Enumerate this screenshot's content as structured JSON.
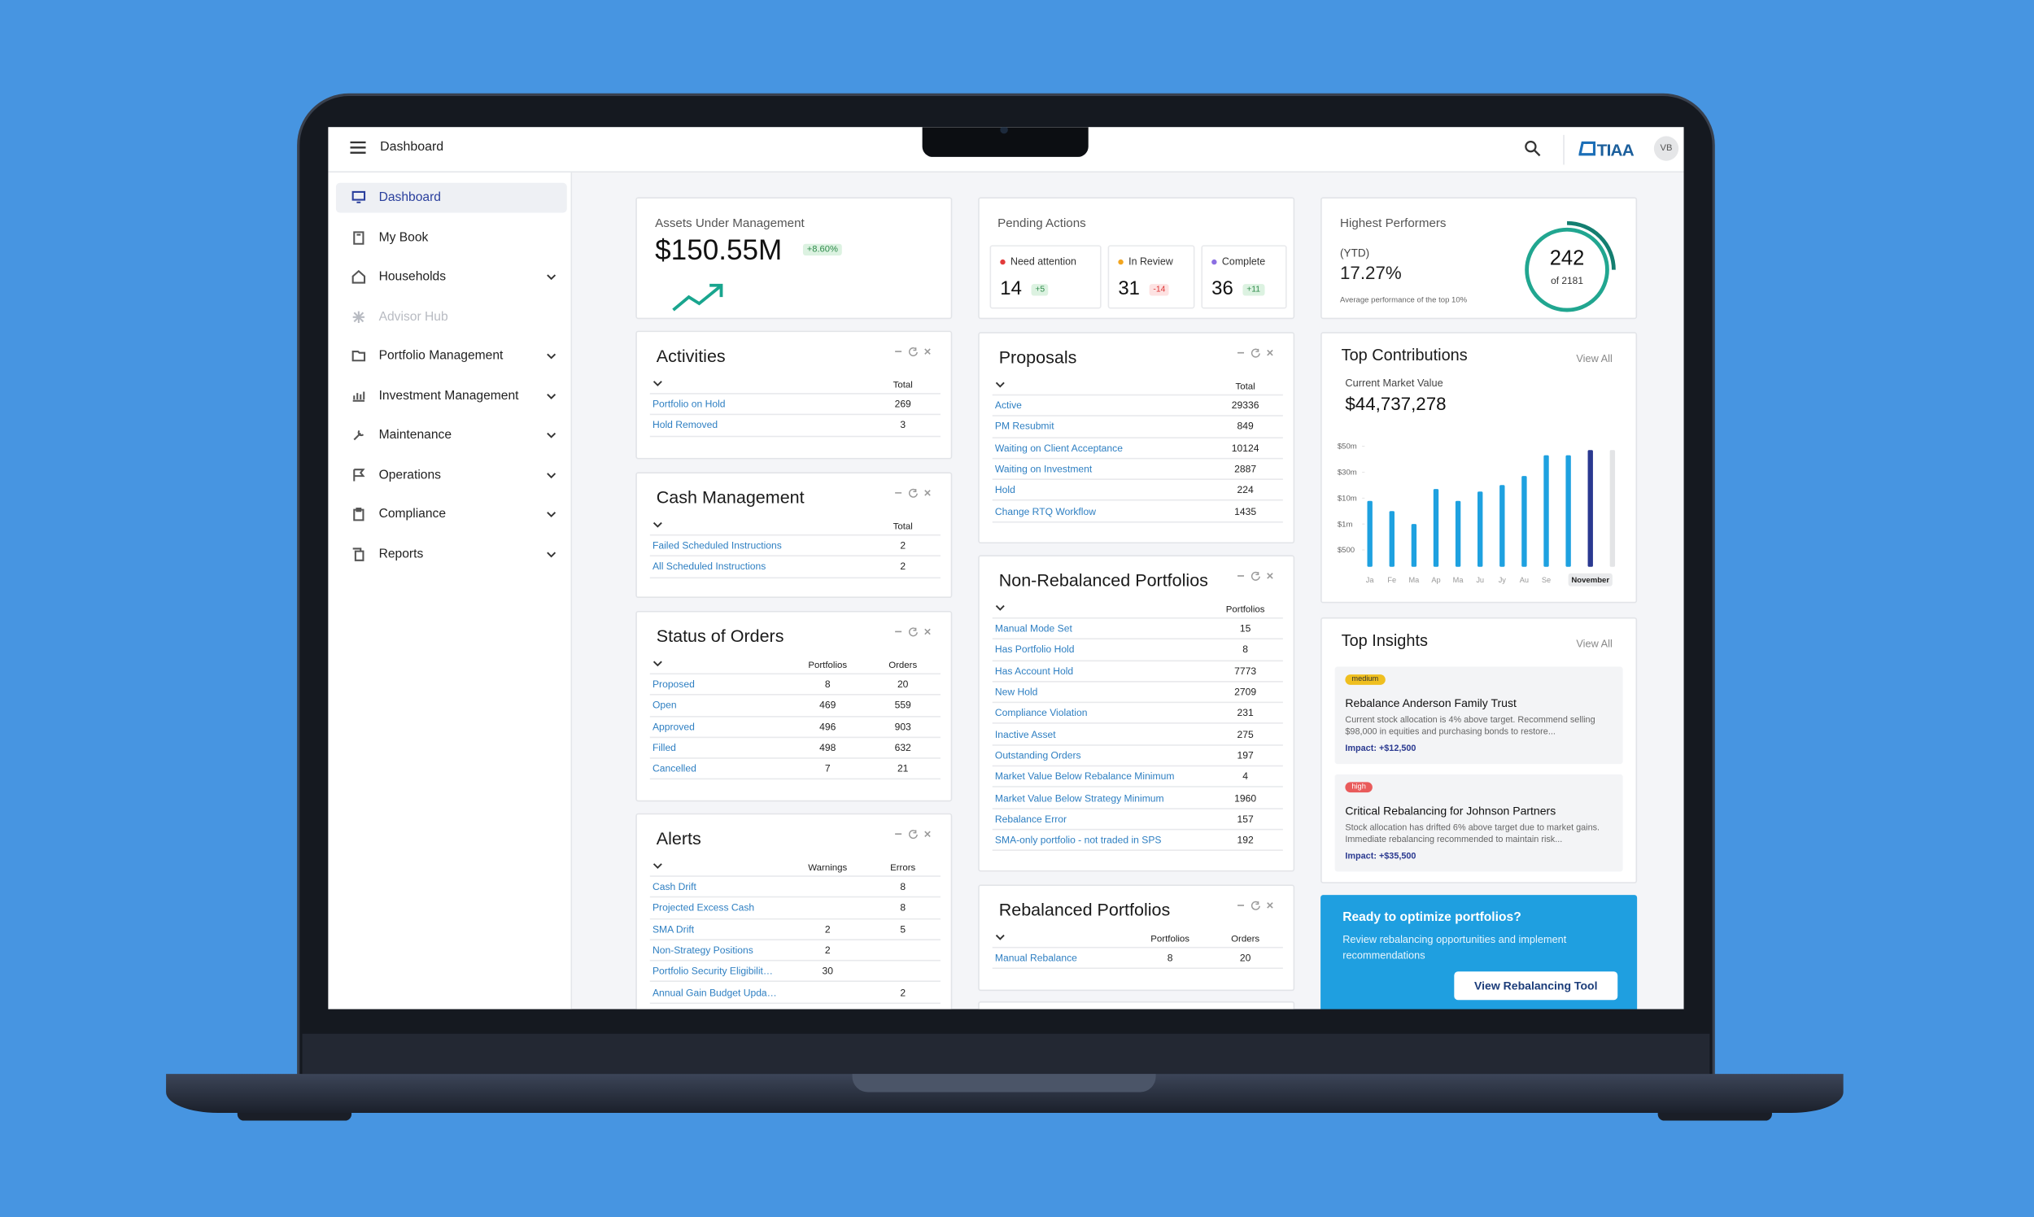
{
  "topbar": {
    "title": "Dashboard",
    "logo": "TIAA",
    "avatar": "VB"
  },
  "sidebar": {
    "items": [
      "Dashboard",
      "My Book",
      "Households",
      "Advisor Hub",
      "Portfolio Management",
      "Investment Management",
      "Maintenance",
      "Operations",
      "Compliance",
      "Reports"
    ]
  },
  "aum": {
    "label": "Assets Under Management",
    "value": "$150.55M",
    "change": "+8.60%"
  },
  "pending": {
    "title": "Pending Actions",
    "items": [
      {
        "label": "Need attention",
        "value": 14,
        "delta": "+5"
      },
      {
        "label": "In Review",
        "value": 31,
        "delta": "-14"
      },
      {
        "label": "Complete",
        "value": 36,
        "delta": "+11"
      }
    ]
  },
  "highest": {
    "title": "Highest Performers",
    "period": "(YTD)",
    "value": "17.27%",
    "note": "Average performance of the top 10%",
    "count": 242,
    "of": "of 2181"
  },
  "activities": {
    "title": "Activities",
    "columns": [
      "Total"
    ],
    "rows": [
      [
        "Portfolio on Hold",
        269
      ],
      [
        "Hold Removed",
        3
      ]
    ]
  },
  "cash_management": {
    "title": "Cash Management",
    "columns": [
      "Total"
    ],
    "rows": [
      [
        "Failed Scheduled Instructions",
        2
      ],
      [
        "All Scheduled Instructions",
        2
      ]
    ]
  },
  "status_of_orders": {
    "title": "Status of Orders",
    "columns": [
      "Portfolios",
      "Orders"
    ],
    "rows": [
      [
        "Proposed",
        8,
        20
      ],
      [
        "Open",
        469,
        559
      ],
      [
        "Approved",
        496,
        903
      ],
      [
        "Filled",
        498,
        632
      ],
      [
        "Cancelled",
        7,
        21
      ]
    ]
  },
  "alerts": {
    "title": "Alerts",
    "columns": [
      "Warnings",
      "Errors"
    ],
    "rows": [
      [
        "Cash Drift",
        null,
        8
      ],
      [
        "Projected Excess Cash",
        null,
        8
      ],
      [
        "SMA Drift",
        2,
        5
      ],
      [
        "Non-Strategy Positions",
        2,
        null
      ],
      [
        "Portfolio Security Eligibilit…",
        30,
        null
      ],
      [
        "Annual Gain Budget Upda…",
        null,
        2
      ]
    ]
  },
  "proposals": {
    "title": "Proposals",
    "columns": [
      "Total"
    ],
    "rows": [
      [
        "Active",
        29336
      ],
      [
        "PM Resubmit",
        849
      ],
      [
        "Waiting on Client Acceptance",
        10124
      ],
      [
        "Waiting on Investment",
        2887
      ],
      [
        "Hold",
        224
      ],
      [
        "Change RTQ Workflow",
        1435
      ]
    ]
  },
  "non_rebalanced": {
    "title": "Non-Rebalanced Portfolios",
    "columns": [
      "Portfolios"
    ],
    "rows": [
      [
        "Manual Mode Set",
        15
      ],
      [
        "Has Portfolio Hold",
        8
      ],
      [
        "Has Account Hold",
        7773
      ],
      [
        "New Hold",
        2709
      ],
      [
        "Compliance Violation",
        231
      ],
      [
        "Inactive Asset",
        275
      ],
      [
        "Outstanding Orders",
        197
      ],
      [
        "Market Value Below Rebalance Minimum",
        4
      ],
      [
        "Market Value Below Strategy Minimum",
        1960
      ],
      [
        "Rebalance Error",
        157
      ],
      [
        "SMA-only portfolio - not traded in SPS",
        192
      ]
    ]
  },
  "rebalanced": {
    "title": "Rebalanced Portfolios",
    "columns": [
      "Portfolios",
      "Orders"
    ],
    "rows": [
      [
        "Manual Rebalance",
        8,
        20
      ]
    ]
  },
  "top_contributions": {
    "title": "Top Contributions",
    "view_all": "View All",
    "label": "Current Market Value",
    "value": "$44,737,278",
    "chart": {
      "type": "bar",
      "categories": [
        "Ja",
        "Fe",
        "Ma",
        "Ap",
        "Ma",
        "Ju",
        "Jy",
        "Au",
        "Se",
        null,
        "November",
        null
      ],
      "values": [
        9000000,
        5500000,
        1000000,
        17000000,
        9000000,
        15000000,
        20000000,
        27000000,
        43000000,
        43000000,
        47000000,
        47000000
      ],
      "colors": [
        "#1ea1e0",
        "#1ea1e0",
        "#1ea1e0",
        "#1ea1e0",
        "#1ea1e0",
        "#1ea1e0",
        "#1ea1e0",
        "#1ea1e0",
        "#1ea1e0",
        "#1ea1e0",
        "#2a3990",
        "#e3e4e6"
      ],
      "selected": 10,
      "ylim": [
        0,
        50000000
      ],
      "yticks": [
        {
          "value": 500,
          "label": "$500"
        },
        {
          "value": 1000000,
          "label": "$1m"
        },
        {
          "value": 10000000,
          "label": "$10m"
        },
        {
          "value": 30000000,
          "label": "$30m"
        },
        {
          "value": 50000000,
          "label": "$50m"
        }
      ]
    }
  },
  "top_insights": {
    "title": "Top Insights",
    "view_all": "View All",
    "items": [
      {
        "tag": "medium",
        "title": "Rebalance Anderson Family Trust",
        "text": "Current stock allocation is 4% above target. Recommend selling $98,000 in equities and purchasing bonds to restore...",
        "impact": "Impact: +$12,500"
      },
      {
        "tag": "high",
        "title": "Critical Rebalancing for Johnson Partners",
        "text": "Stock allocation has drifted 6% above target due to market gains. Immediate rebalancing recommended to maintain risk...",
        "impact": "Impact: +$35,500"
      }
    ]
  },
  "cta": {
    "title": "Ready to optimize portfolios?",
    "text": "Review rebalancing opportunities and implement recommendations",
    "button": "View Rebalancing Tool"
  }
}
